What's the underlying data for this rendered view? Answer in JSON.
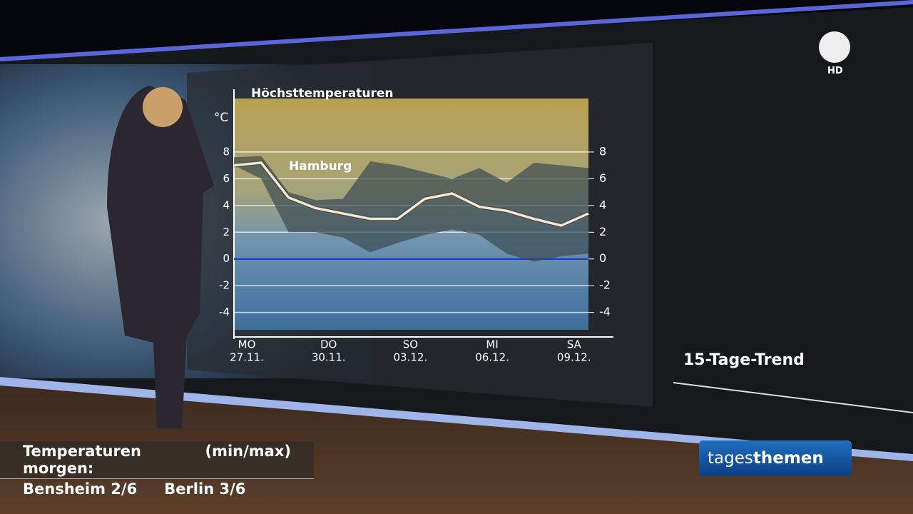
{
  "chart_data": {
    "type": "line",
    "title": "Höchsttemperaturen",
    "y_label": "°C",
    "annotation": "Hamburg",
    "categories": [
      "MO",
      null,
      null,
      "DO",
      null,
      null,
      "SO",
      null,
      null,
      "MI",
      null,
      null,
      "SA",
      null
    ],
    "dates": [
      "27.11.",
      null,
      null,
      "30.11.",
      null,
      null,
      "03.12.",
      null,
      null,
      "06.12.",
      null,
      null,
      "09.12.",
      null
    ],
    "series": [
      {
        "name": "Hamburg",
        "color": "#f3e6d2",
        "values": [
          7.0,
          7.2,
          4.6,
          3.8,
          3.4,
          3.0,
          3.0,
          4.5,
          4.9,
          3.9,
          3.6,
          3.0,
          2.5,
          3.4
        ]
      }
    ],
    "band_high": [
      7.6,
      7.7,
      5.0,
      4.4,
      4.5,
      7.3,
      7.0,
      6.5,
      6.0,
      6.8,
      5.7,
      7.2,
      7.0,
      6.8
    ],
    "band_low": [
      7.0,
      6.0,
      2.0,
      2.0,
      1.6,
      0.5,
      1.2,
      1.8,
      2.2,
      1.8,
      0.4,
      -0.2,
      0.2,
      0.4
    ],
    "band_color": "#3a4a50",
    "ylim": [
      -5.3,
      12
    ],
    "yticks": [
      -4,
      -2,
      0,
      2,
      4,
      6,
      8
    ],
    "y2lim": [
      -5.3,
      12
    ],
    "y2ticks": [
      -4,
      -2,
      0,
      2,
      4,
      6,
      8
    ],
    "zero_line_color": "#2040c8",
    "grid": true
  },
  "panel_label": "15-Tage-Trend",
  "ticker": {
    "heading": "Temperaturen morgen:",
    "unit": "(min/max)",
    "items": [
      "Bensheim 2/6",
      "Berlin 3/6"
    ]
  },
  "logo": {
    "channel": "HD",
    "show_part1": "tages",
    "show_part2": "themen"
  }
}
